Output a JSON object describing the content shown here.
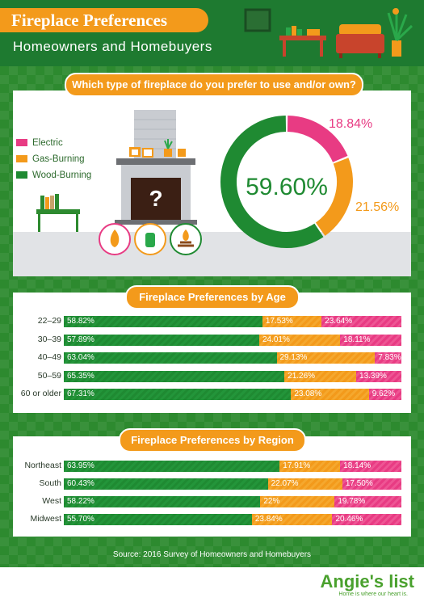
{
  "header": {
    "title": "Fireplace Preferences",
    "subtitle": "Homeowners and Homebuyers"
  },
  "colors": {
    "wood": "#1f8a32",
    "gas": "#f39a1b",
    "electric": "#e83b83",
    "background": "#2d8a2f"
  },
  "overall": {
    "question": "Which type of fireplace do you prefer to use and/or own?",
    "mystery_mark": "?",
    "legend": [
      "Electric",
      "Gas-Burning",
      "Wood-Burning"
    ],
    "center_label": "59.60%",
    "labels": {
      "electric": "18.84%",
      "gas": "21.56%"
    }
  },
  "age": {
    "title": "Fireplace Preferences by Age"
  },
  "region": {
    "title": "Fireplace Preferences by Region"
  },
  "source": "Source: 2016 Survey of Homeowners and Homebuyers",
  "brand": {
    "name": "Angie's list",
    "tagline": "Home is where our heart is."
  },
  "chart_data": [
    {
      "type": "pie",
      "title": "Which type of fireplace do you prefer to use and/or own?",
      "categories": [
        "Electric",
        "Gas-Burning",
        "Wood-Burning"
      ],
      "values": [
        18.84,
        21.56,
        59.6
      ],
      "value_labels": [
        "18.84%",
        "21.56%",
        "59.60%"
      ],
      "legend": "left"
    },
    {
      "type": "bar",
      "title": "Fireplace Preferences by Age",
      "stacked": true,
      "orientation": "horizontal",
      "categories": [
        "22–29",
        "30–39",
        "40–49",
        "50–59",
        "60 or older"
      ],
      "series": [
        {
          "name": "Wood-Burning",
          "values": [
            58.82,
            57.89,
            63.04,
            65.35,
            67.31
          ],
          "labels": [
            "58.82%",
            "57.89%",
            "63.04%",
            "65.35%",
            "67.31%"
          ]
        },
        {
          "name": "Gas-Burning",
          "values": [
            17.53,
            24.01,
            29.13,
            21.26,
            23.08
          ],
          "labels": [
            "17.53%",
            "24.01%",
            "29.13%",
            "21.26%",
            "23.08%"
          ]
        },
        {
          "name": "Electric",
          "values": [
            23.64,
            18.11,
            7.83,
            13.39,
            9.62
          ],
          "labels": [
            "23.64%",
            "18.11%",
            "7.83%",
            "13.39%",
            "9.62%"
          ]
        }
      ]
    },
    {
      "type": "bar",
      "title": "Fireplace Preferences by Region",
      "stacked": true,
      "orientation": "horizontal",
      "categories": [
        "Northeast",
        "South",
        "West",
        "Midwest"
      ],
      "series": [
        {
          "name": "Wood-Burning",
          "values": [
            63.95,
            60.43,
            58.22,
            55.7
          ],
          "labels": [
            "63.95%",
            "60.43%",
            "58.22%",
            "55.70%"
          ]
        },
        {
          "name": "Gas-Burning",
          "values": [
            17.91,
            22.07,
            22,
            23.84
          ],
          "labels": [
            "17.91%",
            "22.07%",
            "22%",
            "23.84%"
          ]
        },
        {
          "name": "Electric",
          "values": [
            18.14,
            17.5,
            19.78,
            20.46
          ],
          "labels": [
            "18.14%",
            "17.50%",
            "19.78%",
            "20.46%"
          ]
        }
      ]
    }
  ]
}
